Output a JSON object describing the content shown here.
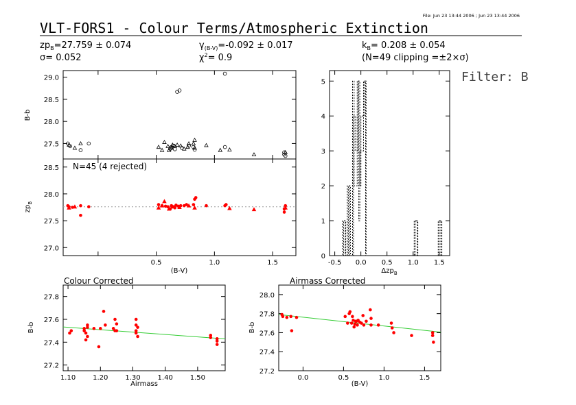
{
  "header": {
    "file_info": "File: Jun 23 13:44 2006 ; Jun 23 13:44 2006",
    "title": "VLT-FORS1 - Colour Terms/Atmospheric Extinction",
    "zp": "zp",
    "zp_sub": "B",
    "zp_value": "=27.759 ± 0.074",
    "sigma": "σ= 0.052",
    "gamma": "γ",
    "gamma_sub": "(B-V)",
    "gamma_value": "=-0.092 ± 0.017",
    "chi": "χ",
    "chi_sup": "2",
    "chi_value": "=   0.9",
    "k": "k",
    "k_sub": "B",
    "k_value": "= 0.208 ± 0.054",
    "clipping": "(N=49 clipping =±2×σ)",
    "filter": "Filter: B"
  },
  "colors": {
    "points": "#ff0000",
    "fit_line": "#33cc33",
    "zero_line": "#999999"
  },
  "chart_data": [
    {
      "id": "raw",
      "type": "scatter",
      "ylabel": "B-b",
      "xlim": [
        -0.3,
        1.7
      ],
      "ylim": [
        27.15,
        29.15
      ],
      "xticks": [
        -0.5,
        0,
        0.5,
        1.0,
        1.5
      ],
      "yticks": [
        27.5,
        28.0,
        28.5,
        29.0
      ],
      "ytick_labels": [
        "27.5",
        "28.0",
        "28.5",
        "29.0"
      ],
      "series": [
        {
          "marker": "circle",
          "points": [
            [
              -0.26,
              27.5
            ],
            [
              -0.24,
              27.44
            ],
            [
              -0.15,
              27.35
            ],
            [
              -0.08,
              27.5
            ],
            [
              0.62,
              27.38
            ],
            [
              0.63,
              27.42
            ],
            [
              0.65,
              27.45
            ],
            [
              0.66,
              27.37
            ],
            [
              0.68,
              28.67
            ],
            [
              0.7,
              28.7
            ],
            [
              0.72,
              27.4
            ],
            [
              0.78,
              27.45
            ],
            [
              0.82,
              27.42
            ],
            [
              0.83,
              27.36
            ],
            [
              1.09,
              29.08
            ],
            [
              1.09,
              27.42
            ],
            [
              1.6,
              27.25
            ],
            [
              1.6,
              27.3
            ],
            [
              1.61,
              27.22
            ]
          ]
        },
        {
          "marker": "triangle",
          "points": [
            [
              -0.25,
              27.47
            ],
            [
              -0.2,
              27.4
            ],
            [
              -0.15,
              27.5
            ],
            [
              0.52,
              27.42
            ],
            [
              0.55,
              27.35
            ],
            [
              0.57,
              27.53
            ],
            [
              0.6,
              27.44
            ],
            [
              0.61,
              27.35
            ],
            [
              0.63,
              27.4
            ],
            [
              0.64,
              27.47
            ],
            [
              0.66,
              27.44
            ],
            [
              0.68,
              27.47
            ],
            [
              0.71,
              27.45
            ],
            [
              0.74,
              27.38
            ],
            [
              0.77,
              27.42
            ],
            [
              0.78,
              27.5
            ],
            [
              0.82,
              27.5
            ],
            [
              0.83,
              27.58
            ],
            [
              0.83,
              27.4
            ],
            [
              0.93,
              27.46
            ],
            [
              1.05,
              27.35
            ],
            [
              1.13,
              27.36
            ],
            [
              1.34,
              27.25
            ],
            [
              1.61,
              27.3
            ]
          ]
        }
      ]
    },
    {
      "id": "zp",
      "type": "scatter",
      "label": "N=45 (4 rejected)",
      "ylabel": "zp",
      "ylabel_sub": "B",
      "xlabel": "(B-V)",
      "xlim": [
        -0.3,
        1.7
      ],
      "ylim": [
        26.85,
        28.65
      ],
      "xticks": [
        -0.5,
        0,
        0.5,
        1.0,
        1.5
      ],
      "xtick_labels": [
        "0.5",
        "1.0",
        "1.5"
      ],
      "xtick_label_values": [
        0.5,
        1.0,
        1.5
      ],
      "yticks": [
        27.0,
        27.5,
        28.0,
        28.5
      ],
      "ytick_labels": [
        "27.0",
        "27.5",
        "28.0",
        "28.5"
      ],
      "zero_line": 27.759,
      "series": [
        {
          "marker": "dot",
          "points": [
            [
              -0.26,
              27.78
            ],
            [
              -0.25,
              27.76
            ],
            [
              -0.22,
              27.75
            ],
            [
              -0.15,
              27.78
            ],
            [
              -0.15,
              27.6
            ],
            [
              -0.08,
              27.76
            ],
            [
              0.52,
              27.8
            ],
            [
              0.55,
              27.78
            ],
            [
              0.58,
              27.77
            ],
            [
              0.6,
              27.76
            ],
            [
              0.62,
              27.72
            ],
            [
              0.63,
              27.78
            ],
            [
              0.65,
              27.76
            ],
            [
              0.66,
              27.74
            ],
            [
              0.67,
              27.79
            ],
            [
              0.69,
              27.77
            ],
            [
              0.71,
              27.78
            ],
            [
              0.74,
              27.78
            ],
            [
              0.76,
              27.8
            ],
            [
              0.82,
              27.8
            ],
            [
              0.83,
              27.9
            ],
            [
              0.84,
              27.93
            ],
            [
              0.93,
              27.78
            ],
            [
              1.09,
              27.78
            ],
            [
              1.1,
              27.8
            ],
            [
              1.6,
              27.72
            ],
            [
              1.6,
              27.66
            ],
            [
              1.61,
              27.78
            ]
          ]
        },
        {
          "marker": "triangle",
          "points": [
            [
              -0.25,
              27.74
            ],
            [
              -0.2,
              27.76
            ],
            [
              0.52,
              27.74
            ],
            [
              0.55,
              27.78
            ],
            [
              0.57,
              27.86
            ],
            [
              0.61,
              27.72
            ],
            [
              0.64,
              27.76
            ],
            [
              0.7,
              27.75
            ],
            [
              0.78,
              27.78
            ],
            [
              0.83,
              27.74
            ],
            [
              1.13,
              27.73
            ],
            [
              1.34,
              27.71
            ],
            [
              1.61,
              27.74
            ]
          ]
        }
      ]
    },
    {
      "id": "hist",
      "type": "histogram",
      "xlabel": "Δzp",
      "xlabel_sub": "B",
      "xlim": [
        -0.6,
        1.7
      ],
      "ylim": [
        0,
        5.3
      ],
      "xticks": [
        -0.5,
        0,
        0.5,
        1.0,
        1.5
      ],
      "xtick_labels": [
        "-0.5",
        "0.0",
        "0.5",
        "1.0",
        "1.5"
      ],
      "yticks": [
        0,
        1,
        2,
        3,
        4,
        5
      ],
      "ytick_labels": [
        "0",
        "1",
        "2",
        "3",
        "4",
        "5"
      ],
      "series": [
        {
          "x": [
            -0.6,
            -0.35,
            -0.35,
            -0.3,
            -0.3,
            -0.26,
            -0.26,
            -0.22,
            -0.22,
            -0.16,
            -0.16,
            -0.13,
            -0.13,
            -0.07,
            -0.07,
            -0.04,
            -0.04,
            -0.02,
            -0.02,
            0.05,
            0.05,
            0.09,
            0.09,
            1.02,
            1.02,
            1.08,
            1.08,
            1.48,
            1.48,
            1.53,
            1.53,
            1.7
          ],
          "y": [
            0,
            0,
            1,
            1,
            0,
            0,
            2,
            2,
            0,
            0,
            5,
            5,
            2,
            2,
            5,
            5,
            1,
            1,
            3,
            3,
            5,
            5,
            0,
            0,
            1,
            1,
            0,
            0,
            1,
            1,
            0,
            0
          ]
        },
        {
          "x": [
            -0.6,
            -0.33,
            -0.33,
            -0.29,
            -0.29,
            -0.24,
            -0.24,
            -0.2,
            -0.2,
            -0.14,
            -0.14,
            -0.1,
            -0.1,
            -0.05,
            -0.05,
            -0.02,
            -0.02,
            0.0,
            0.0,
            0.07,
            0.07,
            0.1,
            0.1,
            1.04,
            1.04,
            1.09,
            1.09,
            1.5,
            1.5,
            1.55,
            1.55,
            1.7
          ],
          "y": [
            0,
            0,
            1,
            1,
            0,
            0,
            2,
            2,
            0,
            0,
            4,
            4,
            3,
            3,
            5,
            5,
            2,
            2,
            4,
            4,
            5,
            5,
            0,
            0,
            1,
            1,
            0,
            0,
            1,
            1,
            0,
            0
          ]
        }
      ]
    },
    {
      "id": "colour_corrected",
      "type": "scatter",
      "title": "Colour Corrected",
      "ylabel": "B-b",
      "xlabel": "Airmass",
      "xlim": [
        1.085,
        1.585
      ],
      "ylim": [
        27.15,
        27.9
      ],
      "xticks": [
        1.1,
        1.2,
        1.3,
        1.4,
        1.5
      ],
      "xtick_labels": [
        "1.10",
        "1.20",
        "1.30",
        "1.40",
        "1.50"
      ],
      "yticks": [
        27.2,
        27.4,
        27.6,
        27.8
      ],
      "ytick_labels": [
        "27.2",
        "27.4",
        "27.6",
        "27.8"
      ],
      "fit_line": [
        [
          1.085,
          27.533
        ],
        [
          1.585,
          27.429
        ]
      ],
      "series": [
        {
          "marker": "dot",
          "points": [
            [
              1.105,
              27.48
            ],
            [
              1.11,
              27.5
            ],
            [
              1.15,
              27.52
            ],
            [
              1.15,
              27.5
            ],
            [
              1.155,
              27.48
            ],
            [
              1.155,
              27.42
            ],
            [
              1.16,
              27.55
            ],
            [
              1.16,
              27.53
            ],
            [
              1.16,
              27.45
            ],
            [
              1.18,
              27.52
            ],
            [
              1.195,
              27.36
            ],
            [
              1.2,
              27.52
            ],
            [
              1.21,
              27.67
            ],
            [
              1.215,
              27.55
            ],
            [
              1.24,
              27.52
            ],
            [
              1.245,
              27.6
            ],
            [
              1.245,
              27.5
            ],
            [
              1.25,
              27.56
            ],
            [
              1.25,
              27.5
            ],
            [
              1.31,
              27.6
            ],
            [
              1.31,
              27.55
            ],
            [
              1.31,
              27.5
            ],
            [
              1.31,
              27.48
            ],
            [
              1.315,
              27.45
            ],
            [
              1.315,
              27.53
            ],
            [
              1.54,
              27.46
            ],
            [
              1.54,
              27.44
            ],
            [
              1.56,
              27.41
            ],
            [
              1.56,
              27.38
            ],
            [
              1.56,
              27.43
            ]
          ]
        }
      ]
    },
    {
      "id": "airmass_corrected",
      "type": "scatter",
      "title": "Airmass Corrected",
      "ylabel": "B-b",
      "xlabel": "(B-V)",
      "xlim": [
        -0.3,
        1.7
      ],
      "ylim": [
        27.2,
        28.1
      ],
      "xticks": [
        0,
        0.5,
        1.0,
        1.5
      ],
      "xtick_labels": [
        "0.0",
        "0.5",
        "1.0",
        "1.5"
      ],
      "yticks": [
        27.2,
        27.4,
        27.6,
        27.8,
        28.0
      ],
      "ytick_labels": [
        "27.2",
        "27.4",
        "27.6",
        "27.8",
        "28.0"
      ],
      "fit_line": [
        [
          -0.3,
          27.79
        ],
        [
          1.7,
          27.606
        ]
      ],
      "series": [
        {
          "marker": "dot",
          "points": [
            [
              -0.26,
              27.79
            ],
            [
              -0.25,
              27.77
            ],
            [
              -0.2,
              27.76
            ],
            [
              -0.15,
              27.77
            ],
            [
              -0.14,
              27.62
            ],
            [
              -0.08,
              27.76
            ],
            [
              0.52,
              27.77
            ],
            [
              0.55,
              27.7
            ],
            [
              0.57,
              27.8
            ],
            [
              0.58,
              27.82
            ],
            [
              0.6,
              27.7
            ],
            [
              0.61,
              27.77
            ],
            [
              0.62,
              27.73
            ],
            [
              0.63,
              27.66
            ],
            [
              0.64,
              27.69
            ],
            [
              0.65,
              27.72
            ],
            [
              0.66,
              27.72
            ],
            [
              0.67,
              27.68
            ],
            [
              0.68,
              27.73
            ],
            [
              0.7,
              27.71
            ],
            [
              0.72,
              27.7
            ],
            [
              0.74,
              27.78
            ],
            [
              0.75,
              27.68
            ],
            [
              0.78,
              27.72
            ],
            [
              0.83,
              27.84
            ],
            [
              0.84,
              27.75
            ],
            [
              0.84,
              27.68
            ],
            [
              0.93,
              27.68
            ],
            [
              1.09,
              27.7
            ],
            [
              1.1,
              27.65
            ],
            [
              1.12,
              27.6
            ],
            [
              1.34,
              27.57
            ],
            [
              1.6,
              27.6
            ],
            [
              1.6,
              27.57
            ],
            [
              1.61,
              27.5
            ]
          ]
        }
      ]
    }
  ]
}
